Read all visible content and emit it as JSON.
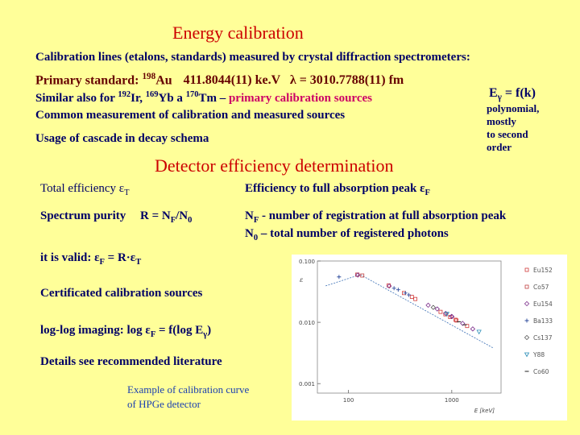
{
  "heading1": "Energy calibration",
  "line_calibration": "Calibration lines (etalons, standards) measured by crystal diffraction spectrometers:",
  "primary": {
    "label": "Primary standard: ",
    "mass": "198",
    "element": "Au",
    "energy": "411.8044(11) ke.V",
    "lambda": "λ = 3010.7788(11) fm"
  },
  "similar": {
    "prefix": "Similar also for ",
    "m1": "192",
    "e1": "Ir, ",
    "m2": "169",
    "e2": "Yb a ",
    "m3": "170",
    "e3": "Tm – ",
    "highlight": "primary calibration sources"
  },
  "common": "Common measurement of calibration and measured sources",
  "usage": "Usage of cascade in decay schema",
  "side": {
    "eq_main": "E",
    "eq_sub": "γ",
    "eq_rest": " = f(k)",
    "note_lines": [
      "polynomial,",
      "mostly",
      "to second",
      "order"
    ]
  },
  "heading2": "Detector efficiency determination",
  "total_eff": {
    "label": "Total efficiency ε",
    "sub": "T"
  },
  "full_abs": {
    "label": "Efficiency to full absorption peak  ε",
    "sub": "F"
  },
  "purity": {
    "label": "Spectrum purity",
    "r": "R = N",
    "r_sub1": "F",
    "r_mid": "/N",
    "r_sub2": "0"
  },
  "nf_def": {
    "n": "N",
    "sub": "F",
    "text": " -  number of registration at full absorption peak"
  },
  "n0_def": {
    "n": "N",
    "sub": "0",
    "text": " – total number of registered photons"
  },
  "valid": {
    "prefix": "it is valid:   ε",
    "sub1": "F",
    "mid": " = R·ε",
    "sub2": "T"
  },
  "certificated": "Certificated calibration sources",
  "loglog": {
    "prefix": " log-log imaging: log ε",
    "sub1": "F",
    "mid": " = f(log E",
    "sub2": "γ",
    "end": ")"
  },
  "details": "Details see recommended literature",
  "caption_lines": [
    "Example of calibration curve",
    "of HPGe detector"
  ],
  "chart_data": {
    "type": "scatter",
    "title": "",
    "xlabel": "E   [keV]",
    "ylabel": "ε",
    "x_scale": "log",
    "y_scale": "log",
    "x_ticks": [
      "100",
      "1000"
    ],
    "y_ticks": [
      "0.100",
      "0.010",
      "0.001"
    ],
    "xlim": [
      50,
      3000
    ],
    "ylim": [
      0.0007,
      0.1
    ],
    "grid": false,
    "legend_position": "right",
    "series": [
      {
        "name": "Eu152",
        "color": "#d13a3a",
        "marker": "square",
        "x": [
          122,
          245,
          344,
          411,
          444,
          779,
          867,
          964,
          1086,
          1112,
          1408
        ],
        "y": [
          0.06,
          0.04,
          0.03,
          0.026,
          0.024,
          0.0148,
          0.0135,
          0.0122,
          0.011,
          0.0107,
          0.0087
        ]
      },
      {
        "name": "Co57",
        "color": "#c04040",
        "marker": "square",
        "x": [
          122,
          136
        ],
        "y": [
          0.06,
          0.058
        ]
      },
      {
        "name": "Eu154",
        "color": "#7a2b8a",
        "marker": "diamond",
        "x": [
          123,
          248,
          591,
          723,
          873,
          996,
          1005,
          1274,
          1596
        ],
        "y": [
          0.059,
          0.039,
          0.019,
          0.0165,
          0.014,
          0.0125,
          0.0124,
          0.0096,
          0.0078
        ]
      },
      {
        "name": "Ba133",
        "color": "#2c4a9c",
        "marker": "plus",
        "x": [
          81,
          276,
          303,
          356,
          384
        ],
        "y": [
          0.055,
          0.036,
          0.034,
          0.03,
          0.028
        ]
      },
      {
        "name": "Cs137",
        "color": "#555555",
        "marker": "diamond",
        "x": [
          662
        ],
        "y": [
          0.0175
        ]
      },
      {
        "name": "Y88",
        "color": "#2b8fb8",
        "marker": "tri",
        "x": [
          898,
          1836
        ],
        "y": [
          0.0137,
          0.007
        ]
      },
      {
        "name": "Co60",
        "color": "#333333",
        "marker": "dash",
        "x": [
          1173,
          1333
        ],
        "y": [
          0.0102,
          0.0091
        ]
      }
    ]
  }
}
